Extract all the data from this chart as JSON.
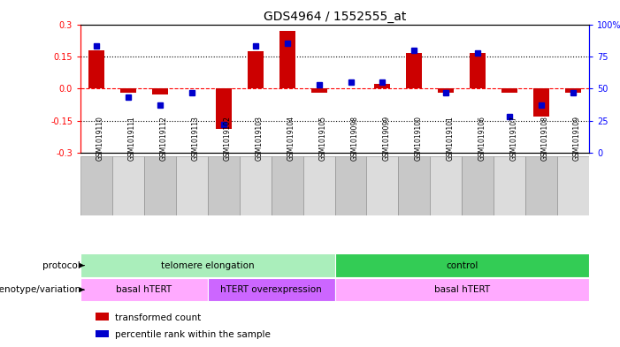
{
  "title": "GDS4964 / 1552555_at",
  "samples": [
    "GSM1019110",
    "GSM1019111",
    "GSM1019112",
    "GSM1019113",
    "GSM1019102",
    "GSM1019103",
    "GSM1019104",
    "GSM1019105",
    "GSM1019098",
    "GSM1019099",
    "GSM1019100",
    "GSM1019101",
    "GSM1019106",
    "GSM1019107",
    "GSM1019108",
    "GSM1019109"
  ],
  "transformed_count": [
    0.18,
    -0.02,
    -0.03,
    0.0,
    -0.19,
    0.175,
    0.27,
    -0.02,
    0.0,
    0.02,
    0.165,
    -0.02,
    0.165,
    -0.02,
    -0.13,
    -0.02
  ],
  "percentile_rank": [
    83,
    43,
    37,
    47,
    22,
    83,
    85,
    53,
    55,
    55,
    80,
    47,
    78,
    28,
    37,
    47
  ],
  "protocol_groups": [
    {
      "label": "telomere elongation",
      "start": 0,
      "end": 8,
      "color": "#AAEEBB"
    },
    {
      "label": "control",
      "start": 8,
      "end": 16,
      "color": "#33CC55"
    }
  ],
  "genotype_groups": [
    {
      "label": "basal hTERT",
      "start": 0,
      "end": 4,
      "color": "#FFAAFF"
    },
    {
      "label": "hTERT overexpression",
      "start": 4,
      "end": 8,
      "color": "#CC66FF"
    },
    {
      "label": "basal hTERT",
      "start": 8,
      "end": 16,
      "color": "#FFAAFF"
    }
  ],
  "bar_color_red": "#CC0000",
  "bar_color_blue": "#0000CC",
  "ylim_left": [
    -0.3,
    0.3
  ],
  "ylim_right": [
    0,
    100
  ],
  "yticks_left": [
    -0.3,
    -0.15,
    0.0,
    0.15,
    0.3
  ],
  "yticks_right": [
    0,
    25,
    50,
    75,
    100
  ],
  "hline_dotted": [
    0.15,
    -0.15
  ],
  "legend_items": [
    "transformed count",
    "percentile rank within the sample"
  ],
  "bar_width": 0.5,
  "marker_size": 4
}
